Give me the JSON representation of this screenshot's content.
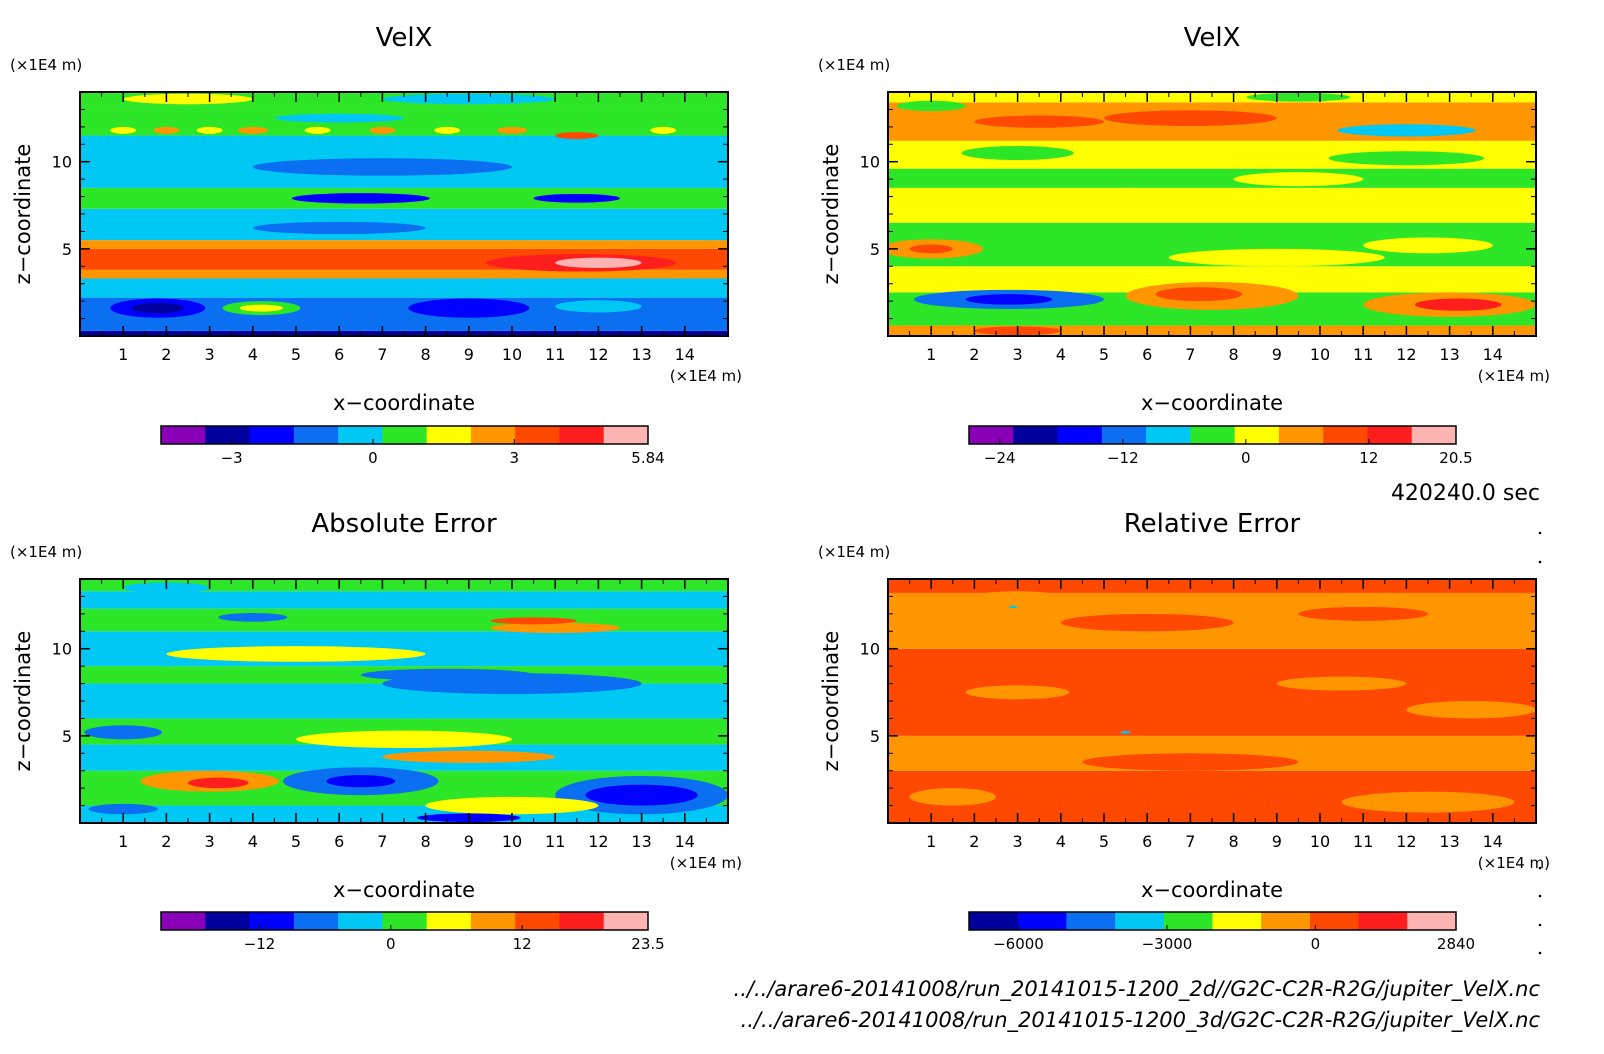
{
  "time_label": "420240.0 sec",
  "files": [
    "../../arare6-20141008/run_20141015-1200_2d//G2C-C2R-R2G/jupiter_VelX.nc",
    "../../arare6-20141008/run_20141015-1200_3d/G2C-C2R-R2G/jupiter_VelX.nc"
  ],
  "colors": {
    "scale": [
      "#8a00b8",
      "#00009f",
      "#0000ff",
      "#0a6ff0",
      "#00c8f5",
      "#2ee628",
      "#ffff00",
      "#ff9600",
      "#ff4800",
      "#ff1e1e",
      "#ffb4b4"
    ]
  },
  "chart_data": [
    {
      "type": "heatmap",
      "title": "VelX",
      "xlabel": "x−coordinate",
      "ylabel": "z−coordinate",
      "x_unit": "(×1E4 m)",
      "y_unit": "(×1E4 m)",
      "xlim": [
        0,
        15
      ],
      "ylim": [
        0,
        14
      ],
      "x_ticks": [
        "1",
        "2",
        "3",
        "4",
        "5",
        "6",
        "7",
        "8",
        "9",
        "10",
        "11",
        "12",
        "13",
        "14"
      ],
      "y_ticks": [
        "5",
        "10"
      ],
      "colorbar": {
        "min": -4.5,
        "max": 5.84,
        "tick_values": [
          -3,
          0,
          3,
          5.84
        ],
        "tick_labels": [
          "−3",
          "0",
          "3",
          "5.84"
        ]
      },
      "bands": [
        {
          "z0": 0.0,
          "z1": 0.3,
          "level": 1
        },
        {
          "z0": 0.3,
          "z1": 2.2,
          "level": 3
        },
        {
          "z0": 2.2,
          "z1": 3.3,
          "level": 4
        },
        {
          "z0": 3.3,
          "z1": 3.8,
          "level": 7
        },
        {
          "z0": 3.8,
          "z1": 5.0,
          "level": 8
        },
        {
          "z0": 5.0,
          "z1": 5.5,
          "level": 7
        },
        {
          "z0": 5.5,
          "z1": 7.3,
          "level": 4
        },
        {
          "z0": 7.3,
          "z1": 8.5,
          "level": 5
        },
        {
          "z0": 8.5,
          "z1": 11.5,
          "level": 4
        },
        {
          "z0": 11.5,
          "z1": 13.2,
          "level": 5
        },
        {
          "z0": 13.2,
          "z1": 14.0,
          "level": 5
        }
      ],
      "blobs": [
        {
          "x": 1.8,
          "z": 1.6,
          "rx": 1.1,
          "rz": 0.55,
          "level": 2
        },
        {
          "x": 1.8,
          "z": 1.6,
          "rx": 0.6,
          "rz": 0.3,
          "level": 1
        },
        {
          "x": 4.2,
          "z": 1.6,
          "rx": 0.9,
          "rz": 0.4,
          "level": 5
        },
        {
          "x": 4.2,
          "z": 1.6,
          "rx": 0.5,
          "rz": 0.2,
          "level": 6
        },
        {
          "x": 9.0,
          "z": 1.6,
          "rx": 1.4,
          "rz": 0.55,
          "level": 2
        },
        {
          "x": 12.0,
          "z": 1.7,
          "rx": 1.0,
          "rz": 0.35,
          "level": 4
        },
        {
          "x": 11.6,
          "z": 4.2,
          "rx": 2.2,
          "rz": 0.5,
          "level": 9
        },
        {
          "x": 12.0,
          "z": 4.2,
          "rx": 1.0,
          "rz": 0.3,
          "level": 10
        },
        {
          "x": 6.0,
          "z": 6.2,
          "rx": 2.0,
          "rz": 0.35,
          "level": 3
        },
        {
          "x": 6.5,
          "z": 7.9,
          "rx": 1.6,
          "rz": 0.3,
          "level": 2
        },
        {
          "x": 11.5,
          "z": 7.9,
          "rx": 1.0,
          "rz": 0.25,
          "level": 2
        },
        {
          "x": 7.0,
          "z": 9.7,
          "rx": 3.0,
          "rz": 0.5,
          "level": 3
        },
        {
          "x": 1.0,
          "z": 11.8,
          "rx": 0.3,
          "rz": 0.2,
          "level": 6
        },
        {
          "x": 2.0,
          "z": 11.8,
          "rx": 0.3,
          "rz": 0.2,
          "level": 7
        },
        {
          "x": 3.0,
          "z": 11.8,
          "rx": 0.3,
          "rz": 0.2,
          "level": 6
        },
        {
          "x": 4.0,
          "z": 11.8,
          "rx": 0.35,
          "rz": 0.2,
          "level": 7
        },
        {
          "x": 5.5,
          "z": 11.8,
          "rx": 0.3,
          "rz": 0.2,
          "level": 6
        },
        {
          "x": 7.0,
          "z": 11.8,
          "rx": 0.3,
          "rz": 0.2,
          "level": 7
        },
        {
          "x": 8.5,
          "z": 11.8,
          "rx": 0.3,
          "rz": 0.2,
          "level": 6
        },
        {
          "x": 10.0,
          "z": 11.8,
          "rx": 0.35,
          "rz": 0.2,
          "level": 7
        },
        {
          "x": 11.5,
          "z": 11.5,
          "rx": 0.5,
          "rz": 0.2,
          "level": 8
        },
        {
          "x": 13.5,
          "z": 11.8,
          "rx": 0.3,
          "rz": 0.2,
          "level": 6
        },
        {
          "x": 6.0,
          "z": 12.5,
          "rx": 1.5,
          "rz": 0.25,
          "level": 4
        },
        {
          "x": 2.5,
          "z": 13.6,
          "rx": 1.5,
          "rz": 0.3,
          "level": 6
        },
        {
          "x": 9.0,
          "z": 13.6,
          "rx": 2.0,
          "rz": 0.3,
          "level": 4
        }
      ]
    },
    {
      "type": "heatmap",
      "title": "VelX",
      "xlabel": "x−coordinate",
      "ylabel": "z−coordinate",
      "x_unit": "(×1E4 m)",
      "y_unit": "(×1E4 m)",
      "xlim": [
        0,
        15
      ],
      "ylim": [
        0,
        14
      ],
      "x_ticks": [
        "1",
        "2",
        "3",
        "4",
        "5",
        "6",
        "7",
        "8",
        "9",
        "10",
        "11",
        "12",
        "13",
        "14"
      ],
      "y_ticks": [
        "5",
        "10"
      ],
      "colorbar": {
        "min": -27,
        "max": 20.5,
        "tick_values": [
          -24,
          -12,
          0,
          12,
          20.5
        ],
        "tick_labels": [
          "−24",
          "−12",
          "0",
          "12",
          "20.5"
        ]
      },
      "bands": [
        {
          "z0": 0.0,
          "z1": 0.6,
          "level": 7
        },
        {
          "z0": 0.6,
          "z1": 2.5,
          "level": 5
        },
        {
          "z0": 2.5,
          "z1": 4.0,
          "level": 6
        },
        {
          "z0": 4.0,
          "z1": 6.5,
          "level": 5
        },
        {
          "z0": 6.5,
          "z1": 8.5,
          "level": 6
        },
        {
          "z0": 8.5,
          "z1": 9.6,
          "level": 5
        },
        {
          "z0": 9.6,
          "z1": 11.2,
          "level": 6
        },
        {
          "z0": 11.2,
          "z1": 13.4,
          "level": 7
        },
        {
          "z0": 13.4,
          "z1": 14.0,
          "level": 6
        }
      ],
      "blobs": [
        {
          "x": 2.8,
          "z": 2.1,
          "rx": 2.2,
          "rz": 0.55,
          "level": 3
        },
        {
          "x": 2.8,
          "z": 2.1,
          "rx": 1.0,
          "rz": 0.3,
          "level": 2
        },
        {
          "x": 7.5,
          "z": 2.3,
          "rx": 2.0,
          "rz": 0.8,
          "level": 7
        },
        {
          "x": 7.2,
          "z": 2.4,
          "rx": 1.0,
          "rz": 0.4,
          "level": 8
        },
        {
          "x": 13.0,
          "z": 1.8,
          "rx": 2.0,
          "rz": 0.7,
          "level": 7
        },
        {
          "x": 13.2,
          "z": 1.8,
          "rx": 1.0,
          "rz": 0.35,
          "level": 9
        },
        {
          "x": 3.0,
          "z": 0.3,
          "rx": 1.0,
          "rz": 0.25,
          "level": 8
        },
        {
          "x": 1.0,
          "z": 5.0,
          "rx": 1.2,
          "rz": 0.55,
          "level": 7
        },
        {
          "x": 1.0,
          "z": 5.0,
          "rx": 0.5,
          "rz": 0.25,
          "level": 8
        },
        {
          "x": 9.0,
          "z": 4.5,
          "rx": 2.5,
          "rz": 0.5,
          "level": 6
        },
        {
          "x": 12.5,
          "z": 5.2,
          "rx": 1.5,
          "rz": 0.45,
          "level": 6
        },
        {
          "x": 5.5,
          "z": 8.0,
          "rx": 1.8,
          "rz": 0.5,
          "level": 6
        },
        {
          "x": 9.5,
          "z": 9.0,
          "rx": 1.5,
          "rz": 0.4,
          "level": 6
        },
        {
          "x": 12.0,
          "z": 10.2,
          "rx": 1.8,
          "rz": 0.4,
          "level": 5
        },
        {
          "x": 12.0,
          "z": 11.8,
          "rx": 1.6,
          "rz": 0.35,
          "level": 4
        },
        {
          "x": 7.0,
          "z": 12.5,
          "rx": 2.0,
          "rz": 0.45,
          "level": 8
        },
        {
          "x": 3.5,
          "z": 12.3,
          "rx": 1.5,
          "rz": 0.35,
          "level": 8
        },
        {
          "x": 3.0,
          "z": 10.5,
          "rx": 1.3,
          "rz": 0.4,
          "level": 5
        },
        {
          "x": 1.0,
          "z": 13.2,
          "rx": 0.8,
          "rz": 0.3,
          "level": 5
        },
        {
          "x": 9.5,
          "z": 13.7,
          "rx": 1.2,
          "rz": 0.25,
          "level": 5
        }
      ]
    },
    {
      "type": "heatmap",
      "title": "Absolute Error",
      "xlabel": "x−coordinate",
      "ylabel": "z−coordinate",
      "x_unit": "(×1E4 m)",
      "y_unit": "(×1E4 m)",
      "xlim": [
        0,
        15
      ],
      "ylim": [
        0,
        14
      ],
      "x_ticks": [
        "1",
        "2",
        "3",
        "4",
        "5",
        "6",
        "7",
        "8",
        "9",
        "10",
        "11",
        "12",
        "13",
        "14"
      ],
      "y_ticks": [
        "5",
        "10"
      ],
      "colorbar": {
        "min": -21,
        "max": 23.5,
        "tick_values": [
          -12,
          0,
          12,
          23.5
        ],
        "tick_labels": [
          "−12",
          "0",
          "12",
          "23.5"
        ]
      },
      "bands": [
        {
          "z0": 0.0,
          "z1": 1.0,
          "level": 4
        },
        {
          "z0": 1.0,
          "z1": 3.0,
          "level": 5
        },
        {
          "z0": 3.0,
          "z1": 4.5,
          "level": 4
        },
        {
          "z0": 4.5,
          "z1": 6.0,
          "level": 5
        },
        {
          "z0": 6.0,
          "z1": 8.0,
          "level": 4
        },
        {
          "z0": 8.0,
          "z1": 9.0,
          "level": 5
        },
        {
          "z0": 9.0,
          "z1": 11.0,
          "level": 4
        },
        {
          "z0": 11.0,
          "z1": 12.3,
          "level": 5
        },
        {
          "z0": 12.3,
          "z1": 13.3,
          "level": 4
        },
        {
          "z0": 13.3,
          "z1": 14.0,
          "level": 5
        }
      ],
      "blobs": [
        {
          "x": 3.0,
          "z": 2.4,
          "rx": 1.6,
          "rz": 0.6,
          "level": 7
        },
        {
          "x": 3.2,
          "z": 2.3,
          "rx": 0.7,
          "rz": 0.3,
          "level": 9
        },
        {
          "x": 6.5,
          "z": 2.4,
          "rx": 1.8,
          "rz": 0.8,
          "level": 3
        },
        {
          "x": 6.5,
          "z": 2.4,
          "rx": 0.8,
          "rz": 0.35,
          "level": 2
        },
        {
          "x": 13.0,
          "z": 1.6,
          "rx": 2.0,
          "rz": 1.1,
          "level": 3
        },
        {
          "x": 13.0,
          "z": 1.6,
          "rx": 1.3,
          "rz": 0.6,
          "level": 2
        },
        {
          "x": 10.0,
          "z": 1.0,
          "rx": 2.0,
          "rz": 0.5,
          "level": 6
        },
        {
          "x": 9.0,
          "z": 0.3,
          "rx": 1.2,
          "rz": 0.25,
          "level": 2
        },
        {
          "x": 1.0,
          "z": 0.8,
          "rx": 0.8,
          "rz": 0.3,
          "level": 3
        },
        {
          "x": 7.5,
          "z": 4.8,
          "rx": 2.5,
          "rz": 0.5,
          "level": 6
        },
        {
          "x": 9.0,
          "z": 3.8,
          "rx": 2.0,
          "rz": 0.35,
          "level": 7
        },
        {
          "x": 1.0,
          "z": 5.2,
          "rx": 0.9,
          "rz": 0.4,
          "level": 3
        },
        {
          "x": 10.0,
          "z": 8.0,
          "rx": 3.0,
          "rz": 0.6,
          "level": 3
        },
        {
          "x": 5.0,
          "z": 9.7,
          "rx": 3.0,
          "rz": 0.45,
          "level": 6
        },
        {
          "x": 8.5,
          "z": 8.5,
          "rx": 2.0,
          "rz": 0.35,
          "level": 3
        },
        {
          "x": 11.0,
          "z": 11.2,
          "rx": 1.5,
          "rz": 0.3,
          "level": 7
        },
        {
          "x": 10.5,
          "z": 11.6,
          "rx": 1.0,
          "rz": 0.2,
          "level": 8
        },
        {
          "x": 4.0,
          "z": 11.8,
          "rx": 0.8,
          "rz": 0.25,
          "level": 3
        },
        {
          "x": 2.0,
          "z": 13.5,
          "rx": 1.0,
          "rz": 0.3,
          "level": 4
        }
      ]
    },
    {
      "type": "heatmap",
      "title": "Relative Error",
      "xlabel": "x−coordinate",
      "ylabel": "z−coordinate",
      "x_unit": "(×1E4 m)",
      "y_unit": "(×1E4 m)",
      "xlim": [
        0,
        15
      ],
      "ylim": [
        0,
        14
      ],
      "x_ticks": [
        "1",
        "2",
        "3",
        "4",
        "5",
        "6",
        "7",
        "8",
        "9",
        "10",
        "11",
        "12",
        "13",
        "14"
      ],
      "y_ticks": [
        "5",
        "10"
      ],
      "colorbar": {
        "min": -7000,
        "max": 2840,
        "tick_values": [
          -6000,
          -3000,
          0,
          2840
        ],
        "tick_labels": [
          "−6000",
          "−3000",
          "0",
          "2840"
        ]
      },
      "bands": [
        {
          "z0": 0.0,
          "z1": 3.0,
          "level": 8
        },
        {
          "z0": 3.0,
          "z1": 5.0,
          "level": 7
        },
        {
          "z0": 5.0,
          "z1": 10.0,
          "level": 8
        },
        {
          "z0": 10.0,
          "z1": 13.2,
          "level": 7
        },
        {
          "z0": 13.2,
          "z1": 14.0,
          "level": 8
        }
      ],
      "blobs": [
        {
          "x": 1.5,
          "z": 1.5,
          "rx": 1.0,
          "rz": 0.5,
          "level": 7
        },
        {
          "x": 12.5,
          "z": 1.2,
          "rx": 2.0,
          "rz": 0.6,
          "level": 7
        },
        {
          "x": 7.0,
          "z": 3.5,
          "rx": 2.5,
          "rz": 0.5,
          "level": 8
        },
        {
          "x": 13.5,
          "z": 6.5,
          "rx": 1.5,
          "rz": 0.5,
          "level": 7
        },
        {
          "x": 3.0,
          "z": 7.5,
          "rx": 1.2,
          "rz": 0.4,
          "level": 7
        },
        {
          "x": 10.5,
          "z": 8.0,
          "rx": 1.5,
          "rz": 0.4,
          "level": 7
        },
        {
          "x": 6.0,
          "z": 11.5,
          "rx": 2.0,
          "rz": 0.5,
          "level": 8
        },
        {
          "x": 11.0,
          "z": 12.0,
          "rx": 1.5,
          "rz": 0.4,
          "level": 8
        },
        {
          "x": 3.0,
          "z": 13.0,
          "rx": 1.0,
          "rz": 0.3,
          "level": 7
        },
        {
          "x": 5.5,
          "z": 5.2,
          "rx": 0.12,
          "rz": 0.08,
          "level": 4
        },
        {
          "x": 2.9,
          "z": 12.4,
          "rx": 0.1,
          "rz": 0.07,
          "level": 4
        }
      ]
    }
  ]
}
